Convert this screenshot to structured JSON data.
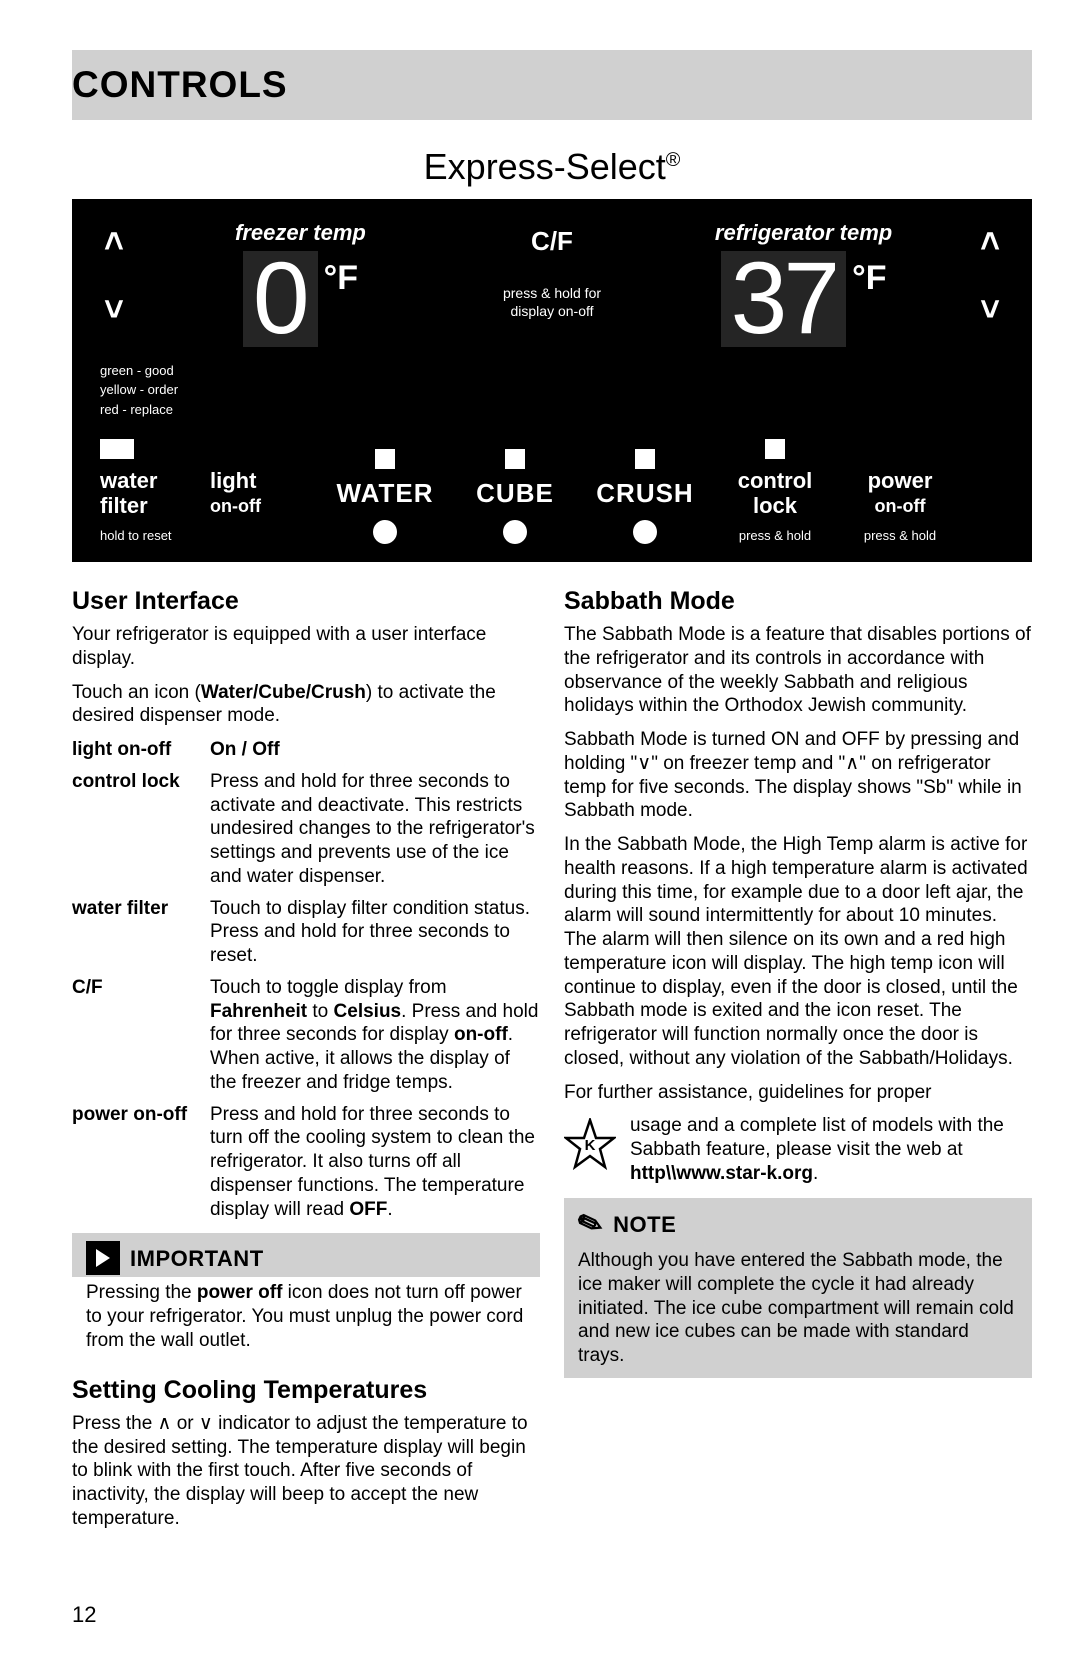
{
  "header": {
    "title": "CONTROLS"
  },
  "express": {
    "title": "Express-Select",
    "reg": "®"
  },
  "panel": {
    "freezer": {
      "label": "freezer temp",
      "value": "0",
      "unit": "°F"
    },
    "fridge": {
      "label": "refrigerator temp",
      "value": "37",
      "unit": "°F"
    },
    "cf": {
      "label": "C/F",
      "sub1": "press & hold for",
      "sub2": "display on-off"
    },
    "status": {
      "green": "green - good",
      "yellow": "yellow - order",
      "red": "red - replace"
    },
    "items": {
      "waterfilter": {
        "t1": "water",
        "t2": "filter",
        "hint": "hold to reset"
      },
      "light": {
        "t1": "light",
        "sub": "on-off"
      },
      "water": {
        "t1": "WATER"
      },
      "cube": {
        "t1": "CUBE"
      },
      "crush": {
        "t1": "CRUSH"
      },
      "lock": {
        "t1": "control",
        "t2": "lock",
        "hint": "press & hold"
      },
      "power": {
        "t1": "power",
        "sub": "on-off",
        "hint": "press & hold"
      }
    }
  },
  "left": {
    "ui_title": "User Interface",
    "ui_p1": "Your refrigerator is equipped with a user interface display.",
    "ui_p2a": "Touch an icon (",
    "ui_p2b": "Water/Cube/Crush",
    "ui_p2c": ") to activate the desired dispenser mode.",
    "opts": [
      {
        "t": "light on-off",
        "d": "On / Off",
        "bold": true
      },
      {
        "t": "control lock",
        "d": "Press and hold for three seconds to activate and deactivate. This restricts undesired changes to the refrigerator's settings and prevents use of the ice and water dispenser."
      },
      {
        "t": "water filter",
        "d": "Touch to display filter condition status. Press and hold for three seconds to reset."
      },
      {
        "t": "C/F",
        "d": "Touch to toggle display from <b>Fahrenheit</b> to <b>Celsius</b>. Press and hold for three seconds for display <b>on-off</b>. When active, it allows the display of the freezer and fridge temps."
      },
      {
        "t": "power on-off",
        "d": "Press and hold for three seconds to turn off the cooling system to clean the refrigerator. It also turns off all dispenser functions. The temperature display will read <b>OFF</b>."
      }
    ],
    "imp_title": "IMPORTANT",
    "imp_body": "Pressing the <b>power off</b> icon does not turn off power to your refrigerator. You must unplug the power cord from the wall outlet.",
    "set_title": "Setting Cooling Temperatures",
    "set_p": "Press the ∧ or ∨ indicator to adjust the temperature to the desired setting. The temperature display will begin to blink with the first touch. After five seconds of inactivity, the display will beep to accept the new temperature."
  },
  "right": {
    "sab_title": "Sabbath Mode",
    "sab_p1": "The Sabbath Mode is a feature that disables portions of the refrigerator and its controls in accordance with observance of the weekly Sabbath and religious holidays within the Orthodox Jewish community.",
    "sab_p2": "Sabbath Mode is turned ON and OFF by pressing and holding \"∨\" on freezer temp and \"∧\" on refrigerator temp for five seconds. The display shows \"Sb\"  while in Sabbath mode.",
    "sab_p3": "In the Sabbath Mode, the High Temp alarm is active for health reasons. If a high temperature alarm is activated during this time, for example due to a door left ajar, the alarm will sound intermittently for about 10 minutes. The alarm will then silence on its own and a red high temperature icon will display. The high temp icon will continue to display, even if the door is closed, until the Sabbath mode is exited and the icon reset. The refrigerator will function normally once the door is closed, without any violation of the Sabbath/Holidays.",
    "sab_p4a": "For further assistance, guidelines for proper",
    "sab_p4b": "usage and a complete list of models with the Sabbath feature, please visit the web at ",
    "sab_url": "http\\\\www.star-k.org",
    "note_title": "NOTE",
    "note_body": "Although you have entered the Sabbath mode, the ice maker will complete the cycle it had already initiated. The ice cube compartment will remain cold and new ice cubes can be made with standard trays."
  },
  "page_num": "12"
}
